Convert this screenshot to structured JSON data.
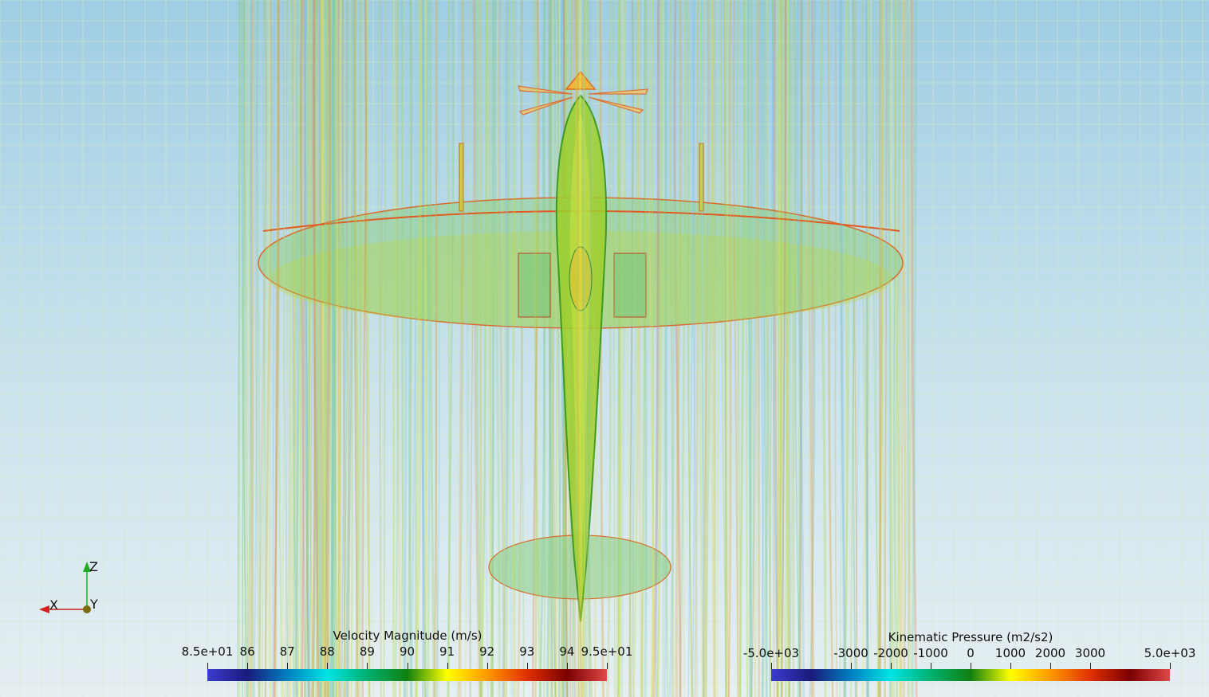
{
  "view": {
    "background_top": "#9fcde3",
    "background_bottom": "#e6eff2",
    "subject": "aircraft-top-view-with-streamlines"
  },
  "orientation_axes": {
    "z": "Z",
    "x": "X",
    "y": "Y"
  },
  "velocity_colorbar": {
    "title": "Velocity Magnitude (m/s)",
    "ticks": [
      "8.5e+01",
      "86",
      "87",
      "88",
      "89",
      "90",
      "91",
      "92",
      "93",
      "94",
      "9.5e+01"
    ],
    "colors": [
      "#3b3bd0",
      "#1a1a7a",
      "#007fbf",
      "#00e5e5",
      "#00b070",
      "#108010",
      "#ffff00",
      "#ff9900",
      "#e03000",
      "#7a0000",
      "#e04848"
    ]
  },
  "pressure_colorbar": {
    "title": "Kinematic Pressure (m2/s2)",
    "ticks": [
      "-5.0e+03",
      "-3000",
      "-2000",
      "-1000",
      "0",
      "1000",
      "2000",
      "3000",
      "5.0e+03"
    ],
    "colors": [
      "#3b3bd0",
      "#1a1a7a",
      "#007fbf",
      "#00e5e5",
      "#00b070",
      "#108010",
      "#ffff00",
      "#ff9900",
      "#e03000",
      "#7a0000",
      "#e04848"
    ]
  }
}
